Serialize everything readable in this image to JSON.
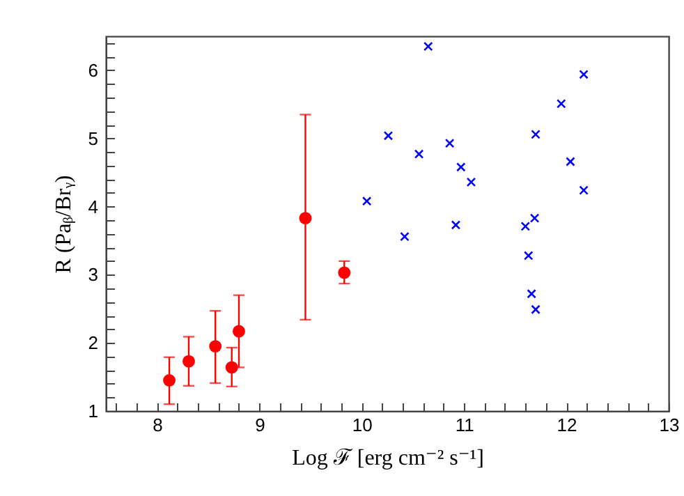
{
  "chart_data": {
    "type": "scatter",
    "xlabel": "Log ℱ  [erg cm⁻² s⁻¹]",
    "ylabel": "R (Paᵦ/Brᵧ)",
    "xlim": [
      7.5,
      13
    ],
    "ylim": [
      1,
      6.5
    ],
    "xticks": [
      {
        "value": 7.6,
        "label": null
      },
      {
        "value": 7.8,
        "label": null
      },
      8,
      {
        "value": 8.2,
        "label": null
      },
      {
        "value": 8.4,
        "label": null
      },
      {
        "value": 8.6,
        "label": null
      },
      {
        "value": 8.8,
        "label": null
      },
      9,
      {
        "value": 9.2,
        "label": null
      },
      {
        "value": 9.4,
        "label": null
      },
      {
        "value": 9.6,
        "label": null
      },
      {
        "value": 9.8,
        "label": null
      },
      10,
      {
        "value": 10.2,
        "label": null
      },
      {
        "value": 10.4,
        "label": null
      },
      {
        "value": 10.6,
        "label": null
      },
      {
        "value": 10.8,
        "label": null
      },
      11,
      {
        "value": 11.2,
        "label": null
      },
      {
        "value": 11.4,
        "label": null
      },
      {
        "value": 11.6,
        "label": null
      },
      {
        "value": 11.8,
        "label": null
      },
      12,
      {
        "value": 12.2,
        "label": null
      },
      {
        "value": 12.4,
        "label": null
      },
      {
        "value": 12.6,
        "label": null
      },
      {
        "value": 12.8,
        "label": null
      },
      13
    ],
    "yticks": [
      1,
      {
        "value": 1.2,
        "label": null
      },
      {
        "value": 1.4,
        "label": null
      },
      {
        "value": 1.6,
        "label": null
      },
      {
        "value": 1.8,
        "label": null
      },
      2,
      {
        "value": 2.2,
        "label": null
      },
      {
        "value": 2.4,
        "label": null
      },
      {
        "value": 2.6,
        "label": null
      },
      {
        "value": 2.8,
        "label": null
      },
      3,
      {
        "value": 3.2,
        "label": null
      },
      {
        "value": 3.4,
        "label": null
      },
      {
        "value": 3.6,
        "label": null
      },
      {
        "value": 3.8,
        "label": null
      },
      4,
      {
        "value": 4.2,
        "label": null
      },
      {
        "value": 4.4,
        "label": null
      },
      {
        "value": 4.6,
        "label": null
      },
      {
        "value": 4.8,
        "label": null
      },
      5,
      {
        "value": 5.2,
        "label": null
      },
      {
        "value": 5.4,
        "label": null
      },
      {
        "value": 5.6,
        "label": null
      },
      {
        "value": 5.8,
        "label": null
      },
      6,
      {
        "value": 6.2,
        "label": null
      },
      {
        "value": 6.4,
        "label": null
      }
    ],
    "grid": false,
    "series": [
      {
        "color": "#ff0000",
        "marker": "circle",
        "x": [
          8.12,
          8.31,
          8.57,
          8.73,
          8.8,
          9.45,
          9.83
        ],
        "values": [
          1.45,
          1.73,
          1.95,
          1.64,
          2.17,
          3.83,
          3.03
        ],
        "errors": [
          [
            1.1,
            1.79
          ],
          [
            1.37,
            2.09
          ],
          [
            1.41,
            2.47
          ],
          [
            1.36,
            1.93
          ],
          [
            1.64,
            2.7
          ],
          [
            2.34,
            5.35
          ],
          [
            2.87,
            3.2
          ]
        ]
      },
      {
        "color": "#0000ff",
        "marker": "cross",
        "x": [
          10.05,
          10.26,
          10.42,
          10.56,
          10.65,
          10.86,
          10.92,
          10.97,
          11.07,
          11.6,
          11.69,
          11.63,
          11.66,
          11.7,
          11.7,
          11.95,
          12.04,
          12.17,
          12.17
        ],
        "values": [
          4.08,
          5.04,
          3.56,
          4.77,
          6.35,
          4.93,
          3.73,
          4.58,
          4.36,
          3.71,
          3.83,
          3.28,
          2.72,
          2.49,
          5.06,
          5.51,
          4.66,
          5.94,
          4.24
        ]
      }
    ]
  }
}
